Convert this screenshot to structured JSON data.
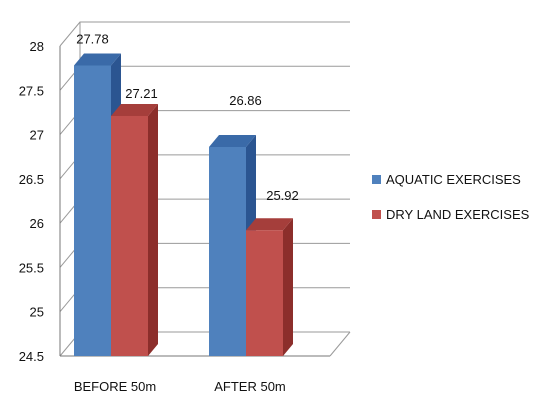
{
  "chart_data": {
    "type": "bar",
    "title": "",
    "xlabel": "",
    "ylabel": "",
    "categories": [
      "BEFORE 50m",
      "AFTER 50m"
    ],
    "series": [
      {
        "name": "AQUATIC EXERCISES",
        "values": [
          27.78,
          26.86
        ],
        "labels": [
          "27.78",
          "26.86"
        ],
        "color": "#4F81BD",
        "side_color": "#2B5591",
        "top_color": "#3A6AA8"
      },
      {
        "name": "DRY LAND EXERCISES",
        "values": [
          27.21,
          25.92
        ],
        "labels": [
          "27.21",
          "25.92"
        ],
        "color": "#C0504D",
        "side_color": "#8C2E2B",
        "top_color": "#A53E3B"
      }
    ],
    "ylim": [
      24.5,
      28
    ],
    "yticks": [
      24.5,
      25,
      25.5,
      26,
      26.5,
      27,
      27.5,
      28
    ],
    "ytick_labels": [
      "24.5",
      "25",
      "25.5",
      "26",
      "26.5",
      "27",
      "27.5",
      "28"
    ],
    "grid": true,
    "legend": "right",
    "style": "3d-bar"
  }
}
